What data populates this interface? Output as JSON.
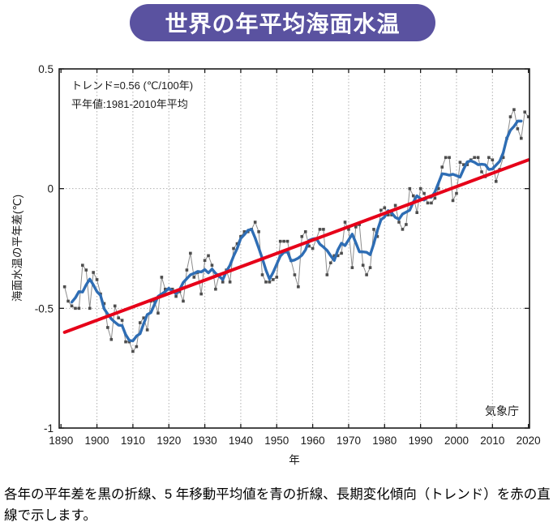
{
  "title": "世界の年平均海面水温",
  "annotations": {
    "trend": "トレンド=0.56 (℃/100年)",
    "baseline": "平年値:1981-2010年平均",
    "source": "気象庁"
  },
  "caption": "各年の平年差を黒の折線、5 年移動平均値を青の折線、長期変化傾向（トレンド）を赤の直線で示します。",
  "colors": {
    "banner_bg": "#5a52a0",
    "annual_line": "#8c8c8c",
    "annual_marker": "#4d4d4d",
    "moving_average": "#2e6db4",
    "trend_line": "#e60019",
    "frame": "#1a1a1a",
    "gridline": "#b0b0b0"
  },
  "chart_data": {
    "type": "line",
    "title": "世界の年平均海面水温",
    "xlabel": "年",
    "ylabel": "海面水温の平年差(℃)",
    "xlim": [
      1889.5,
      2020.3
    ],
    "ylim": [
      -1,
      0.5
    ],
    "xticks": [
      1890,
      1900,
      1910,
      1920,
      1930,
      1940,
      1950,
      1960,
      1970,
      1980,
      1990,
      2000,
      2010,
      2020
    ],
    "yticks": [
      0.5,
      0,
      -0.5,
      -1
    ],
    "ytick_labels": [
      "0.5",
      "0",
      "-0.5",
      "-1"
    ],
    "grid": "dashed, at decade x-ticks 1900-2010 and y=0, y=-0.5",
    "legend_position": "none (described in caption)",
    "series": [
      {
        "name": "annual-anomaly",
        "label_jp": "各年の平年差（黒の折線）",
        "start_year": 1891,
        "values": [
          -0.41,
          -0.47,
          -0.49,
          -0.5,
          -0.5,
          -0.32,
          -0.34,
          -0.5,
          -0.35,
          -0.38,
          -0.44,
          -0.48,
          -0.58,
          -0.63,
          -0.49,
          -0.54,
          -0.55,
          -0.64,
          -0.64,
          -0.68,
          -0.66,
          -0.56,
          -0.54,
          -0.59,
          -0.47,
          -0.47,
          -0.52,
          -0.37,
          -0.42,
          -0.42,
          -0.42,
          -0.45,
          -0.43,
          -0.47,
          -0.34,
          -0.27,
          -0.37,
          -0.35,
          -0.44,
          -0.3,
          -0.28,
          -0.32,
          -0.42,
          -0.36,
          -0.39,
          -0.34,
          -0.39,
          -0.25,
          -0.23,
          -0.2,
          -0.18,
          -0.18,
          -0.17,
          -0.14,
          -0.18,
          -0.36,
          -0.39,
          -0.39,
          -0.38,
          -0.37,
          -0.22,
          -0.22,
          -0.22,
          -0.3,
          -0.36,
          -0.41,
          -0.2,
          -0.18,
          -0.24,
          -0.25,
          -0.21,
          -0.17,
          -0.17,
          -0.36,
          -0.31,
          -0.28,
          -0.28,
          -0.27,
          -0.14,
          -0.17,
          -0.33,
          -0.16,
          -0.15,
          -0.32,
          -0.36,
          -0.33,
          -0.17,
          -0.2,
          -0.09,
          -0.08,
          -0.11,
          -0.11,
          -0.07,
          -0.14,
          -0.17,
          -0.15,
          0.0,
          -0.03,
          -0.1,
          0.0,
          -0.02,
          -0.06,
          -0.06,
          -0.04,
          0.0,
          0.09,
          0.13,
          0.13,
          -0.05,
          -0.02,
          0.11,
          0.1,
          0.1,
          0.12,
          0.13,
          0.13,
          0.07,
          0.05,
          0.13,
          0.12,
          0.03,
          0.08,
          0.13,
          0.21,
          0.3,
          0.33,
          0.25,
          0.21,
          0.32,
          0.3
        ]
      },
      {
        "name": "five-year-moving-average",
        "label_jp": "5 年移動平均値（青の折線）",
        "derived": "centered 5-year mean of annual-anomaly, plotted 1893-2018"
      },
      {
        "name": "linear-trend",
        "label_jp": "長期変化傾向（赤の直線）",
        "rate_c_per_100yr": 0.56,
        "x": [
          1891,
          2020
        ],
        "values": [
          -0.6,
          0.12
        ]
      }
    ]
  }
}
